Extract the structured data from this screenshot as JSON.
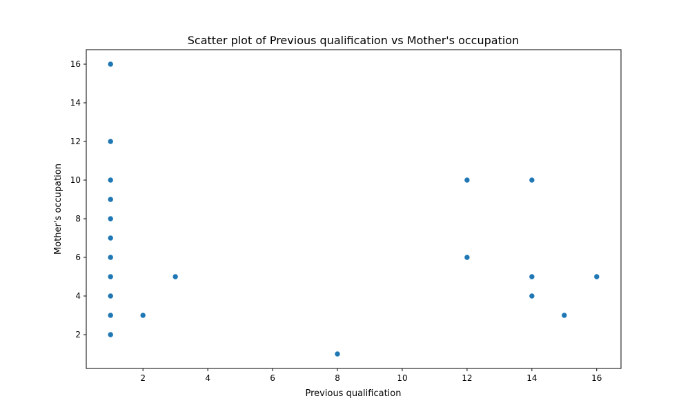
{
  "chart_data": {
    "type": "scatter",
    "title": "Scatter plot of Previous qualification vs Mother's occupation",
    "xlabel": "Previous qualification",
    "ylabel": "Mother's occupation",
    "xlim": [
      0.25,
      16.75
    ],
    "ylim": [
      0.25,
      16.75
    ],
    "x_ticks": [
      2,
      4,
      6,
      8,
      10,
      12,
      14,
      16
    ],
    "y_ticks": [
      2,
      4,
      6,
      8,
      10,
      12,
      14,
      16
    ],
    "grid": false,
    "point_color": "#1f77b4",
    "points": [
      {
        "x": 1,
        "y": 16
      },
      {
        "x": 1,
        "y": 12
      },
      {
        "x": 1,
        "y": 10
      },
      {
        "x": 1,
        "y": 9
      },
      {
        "x": 1,
        "y": 8
      },
      {
        "x": 1,
        "y": 7
      },
      {
        "x": 1,
        "y": 6
      },
      {
        "x": 1,
        "y": 5
      },
      {
        "x": 1,
        "y": 4
      },
      {
        "x": 1,
        "y": 3
      },
      {
        "x": 1,
        "y": 2
      },
      {
        "x": 2,
        "y": 3
      },
      {
        "x": 3,
        "y": 5
      },
      {
        "x": 8,
        "y": 1
      },
      {
        "x": 12,
        "y": 10
      },
      {
        "x": 12,
        "y": 6
      },
      {
        "x": 14,
        "y": 10
      },
      {
        "x": 14,
        "y": 5
      },
      {
        "x": 14,
        "y": 4
      },
      {
        "x": 15,
        "y": 3
      },
      {
        "x": 16,
        "y": 5
      }
    ]
  }
}
